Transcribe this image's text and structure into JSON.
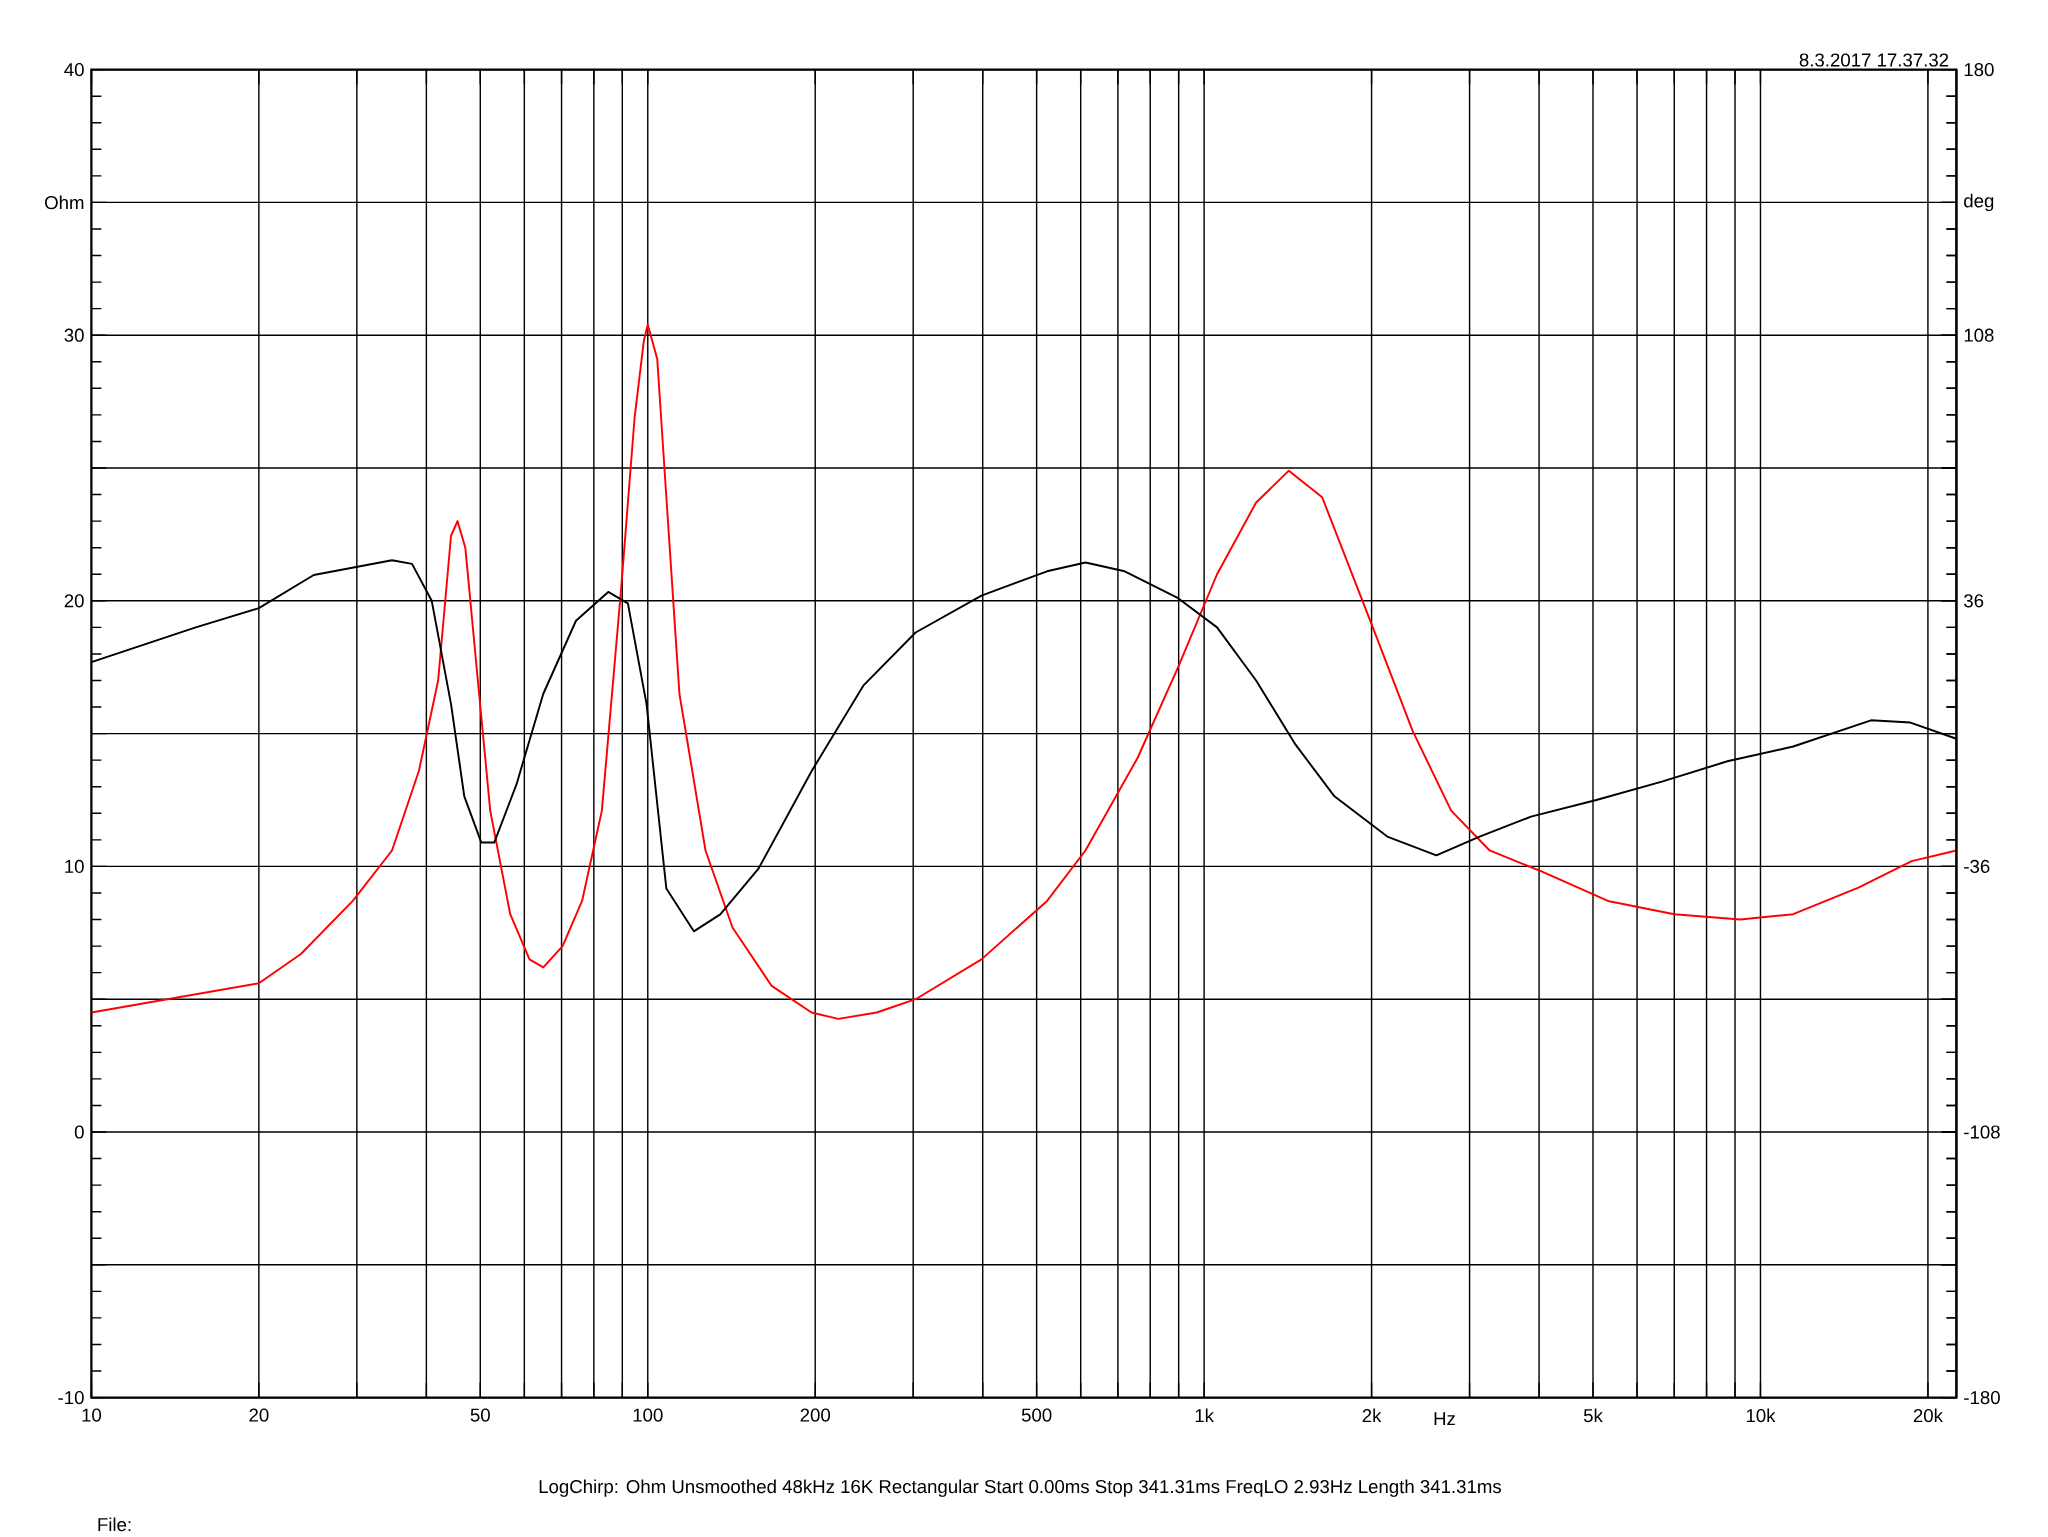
{
  "chart_data": {
    "type": "line",
    "annotations": [
      "8.3.2017 17.37.32",
      "LogChirp:  Ohm   Unsmoothed   48kHz   16K   Rectangular   Start 0.00ms   Stop 341.31ms   FreqLO 2.93Hz   Length 341.31ms",
      "File:"
    ],
    "xlabel": "Hz",
    "log": "x",
    "grid": true,
    "xlim": [
      10,
      22500
    ],
    "xticks": [
      10,
      20,
      {
        "value": 30,
        "label": null
      },
      {
        "value": 40,
        "label": null
      },
      50,
      {
        "value": 60,
        "label": null
      },
      {
        "value": 70,
        "label": null
      },
      {
        "value": 80,
        "label": null
      },
      {
        "value": 90,
        "label": null
      },
      100,
      200,
      {
        "value": 300,
        "label": null
      },
      {
        "value": 400,
        "label": null
      },
      500,
      {
        "value": 600,
        "label": null
      },
      {
        "value": 700,
        "label": null
      },
      {
        "value": 800,
        "label": null
      },
      {
        "value": 900,
        "label": null
      },
      {
        "value": 1000,
        "label": "1k"
      },
      {
        "value": 2000,
        "label": "2k"
      },
      {
        "value": 3000,
        "label": null
      },
      {
        "value": 4000,
        "label": null
      },
      {
        "value": 5000,
        "label": "5k"
      },
      {
        "value": 6000,
        "label": null
      },
      {
        "value": 7000,
        "label": null
      },
      {
        "value": 8000,
        "label": null
      },
      {
        "value": 9000,
        "label": null
      },
      {
        "value": 10000,
        "label": "10k"
      },
      {
        "value": 20000,
        "label": "20k"
      }
    ],
    "ylim": [
      -10,
      40
    ],
    "yticks": [
      -10,
      {
        "value": -5,
        "label": null
      },
      0,
      {
        "value": 5,
        "label": null
      },
      10,
      {
        "value": 15,
        "label": null
      },
      20,
      {
        "value": 25,
        "label": null
      },
      30,
      {
        "value": 35,
        "label": "Ohm"
      },
      40
    ],
    "y2lim": [
      -180,
      180
    ],
    "y2ticks": [
      -180,
      {
        "value": -144,
        "label": null
      },
      -108,
      {
        "value": -72,
        "label": null
      },
      -36,
      {
        "value": 0,
        "label": null
      },
      36,
      {
        "value": 72,
        "label": null
      },
      108,
      {
        "value": 144,
        "label": "deg"
      },
      180
    ],
    "series": [
      {
        "color": "#ff0000",
        "x": [
          10,
          20,
          23.8,
          29.5,
          34.7,
          38.8,
          42.0,
          44.3,
          45.5,
          47.0,
          49.5,
          52.1,
          56.6,
          61.3,
          64.9,
          70.3,
          76.2,
          82.7,
          89.6,
          94.7,
          98.4,
          100,
          104,
          108,
          114,
          127,
          142,
          167,
          197,
          220,
          258,
          303,
          398,
          522,
          612,
          760,
          898,
          1055,
          1240,
          1420,
          1630,
          2010,
          2370,
          2780,
          3260,
          4050,
          5320,
          7000,
          9200,
          11450,
          15000,
          18700,
          22500
        ],
        "values": [
          4.5,
          5.6,
          6.7,
          8.7,
          10.6,
          13.6,
          17.0,
          22.45,
          23.0,
          22.0,
          17.0,
          12.1,
          8.2,
          6.5,
          6.2,
          7.0,
          8.7,
          12.1,
          20.5,
          26.9,
          29.8,
          30.4,
          29.1,
          23.9,
          16.5,
          10.6,
          7.7,
          5.5,
          4.5,
          4.26,
          4.5,
          5.0,
          6.5,
          8.7,
          10.6,
          14.1,
          17.5,
          21.0,
          23.7,
          24.9,
          23.9,
          19.0,
          15.1,
          12.1,
          10.6,
          9.8,
          8.7,
          8.2,
          8.0,
          8.2,
          9.2,
          10.2,
          10.6
        ]
      },
      {
        "color": "#000000",
        "axis": "y2",
        "x": [
          10,
          15.4,
          20,
          25.1,
          34.7,
          37.7,
          40.9,
          44.3,
          46.8,
          50.2,
          53.0,
          58.1,
          64.9,
          74.3,
          84.9,
          92.1,
          99.5,
          108,
          121,
          135,
          158,
          197,
          244,
          303,
          398,
          522,
          612,
          720,
          898,
          1055,
          1240,
          1460,
          1715,
          2140,
          2615,
          3120,
          3870,
          5070,
          6650,
          8720,
          11450,
          15800,
          18600,
          22500
        ],
        "values": [
          19.4,
          28.8,
          34,
          43,
          47,
          46,
          36,
          8,
          -17,
          -29.5,
          -29.5,
          -13.7,
          10.8,
          30.6,
          38.4,
          35.3,
          8,
          -42,
          -53.6,
          -49,
          -36.7,
          -10.2,
          13,
          27.4,
          37.4,
          44,
          46.4,
          44,
          36.7,
          28.8,
          14.4,
          -3,
          -17,
          -28,
          -33,
          -28,
          -22.5,
          -18,
          -13,
          -7.5,
          -3.5,
          3.6,
          3,
          -1.4
        ]
      }
    ]
  }
}
